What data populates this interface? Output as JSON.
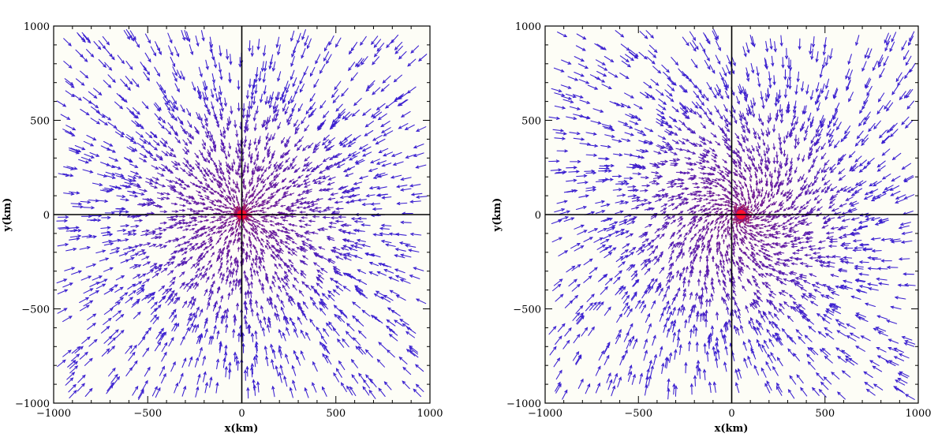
{
  "chart_data": [
    {
      "type": "quiver",
      "panel": "left",
      "xlabel": "x(km)",
      "ylabel": "y(km)",
      "xlim": [
        -1000,
        1000
      ],
      "ylim": [
        -1000,
        1000
      ],
      "xticks": [
        -1000,
        -500,
        0,
        500,
        1000
      ],
      "yticks": [
        -1000,
        -500,
        0,
        500,
        1000
      ],
      "x_tick_labels": [
        "−1000",
        "−500",
        "0",
        "500",
        "1000"
      ],
      "y_tick_labels": [
        "−1000",
        "−500",
        "0",
        "500",
        "1000"
      ],
      "center": [
        0,
        0
      ],
      "swirl": 0,
      "flow_direction": "inward toward center",
      "reference_axes_through_origin": true,
      "colors": {
        "far_arrows": "#3a1fd0",
        "near_arrows": "#8a1a7a",
        "center": "#ff1030"
      }
    },
    {
      "type": "quiver",
      "panel": "right",
      "xlabel": "x(km)",
      "ylabel": "y(km)",
      "xlim": [
        -1000,
        1000
      ],
      "ylim": [
        -1000,
        1000
      ],
      "xticks": [
        -1000,
        -500,
        0,
        500,
        1000
      ],
      "yticks": [
        -1000,
        -500,
        0,
        500,
        1000
      ],
      "x_tick_labels": [
        "−1000",
        "−500",
        "0",
        "500",
        "1000"
      ],
      "y_tick_labels": [
        "−1000",
        "−500",
        "0",
        "500",
        "1000"
      ],
      "center": [
        50,
        0
      ],
      "swirl": 0.45,
      "flow_direction": "inward spiral toward center (cyclonic)",
      "reference_axes_through_origin": true,
      "colors": {
        "far_arrows": "#3a1fd0",
        "near_arrows": "#8a1a7a",
        "center": "#ff1030"
      }
    }
  ]
}
